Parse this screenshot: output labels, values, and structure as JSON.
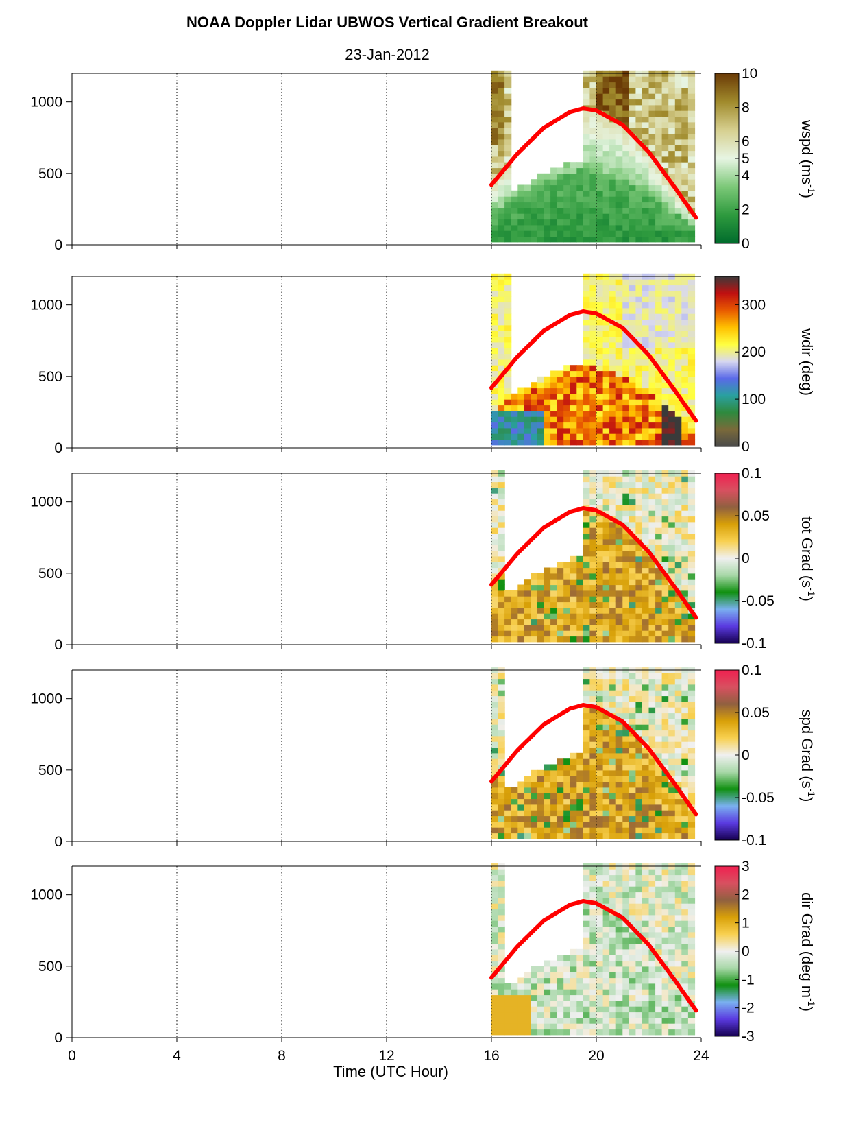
{
  "title": "NOAA Doppler Lidar  UBWOS  Vertical Gradient Breakout",
  "subtitle": "23-Jan-2012",
  "chart_data": {
    "type": "heatmap",
    "x_axis": {
      "label": "Time (UTC Hour)",
      "range": [
        0,
        24
      ],
      "ticks": [
        0,
        4,
        8,
        12,
        16,
        20,
        24
      ],
      "tick_labels": [
        "0",
        "4",
        "8",
        "12",
        "16",
        "20",
        "24"
      ],
      "dotted_gridlines_at": [
        4,
        8,
        12,
        16,
        20
      ]
    },
    "y_axis": {
      "range": [
        0,
        1200
      ],
      "ticks": [
        0,
        500,
        1000
      ],
      "tick_labels": [
        "0",
        "500",
        "1000"
      ]
    },
    "data_time_range": [
      16,
      24
    ],
    "overlay_curve": {
      "color": "#ff0000",
      "x": [
        16.0,
        17.0,
        18.0,
        19.0,
        19.5,
        20.0,
        21.0,
        22.0,
        23.0,
        23.8
      ],
      "y": [
        420,
        640,
        820,
        930,
        955,
        940,
        840,
        650,
        400,
        190
      ]
    },
    "panels": [
      {
        "colorbar_label": "wspd (ms",
        "colorbar_label_sup": "-1",
        "colorbar_label_end": ")",
        "colorbar_range": [
          0,
          10
        ],
        "colorbar_ticks": [
          0,
          2,
          4,
          5,
          6,
          8,
          10
        ],
        "colorbar_tick_labels": [
          "0",
          "2",
          "4",
          "5",
          "6",
          "8",
          "10"
        ],
        "colormap": [
          "#006b2c",
          "#2e9a3e",
          "#7cc878",
          "#e7f5e3",
          "#d6cf8f",
          "#a08a2c",
          "#6a3a06"
        ]
      },
      {
        "colorbar_label": "wdir (deg)",
        "colorbar_label_sup": "",
        "colorbar_label_end": "",
        "colorbar_range": [
          0,
          360
        ],
        "colorbar_ticks": [
          0,
          100,
          200,
          300
        ],
        "colorbar_tick_labels": [
          "0",
          "100",
          "200",
          "300"
        ],
        "colormap": [
          "#4a4a4a",
          "#7a6a3a",
          "#2e8a3e",
          "#2aa0a0",
          "#5a6ae8",
          "#d8d8f0",
          "#ffff40",
          "#ffc000",
          "#e85a00",
          "#c01010",
          "#3a3a3a"
        ]
      },
      {
        "colorbar_label": "tot Grad (s",
        "colorbar_label_sup": "-1",
        "colorbar_label_end": ")",
        "colorbar_range": [
          -0.1,
          0.1
        ],
        "colorbar_ticks": [
          -0.1,
          -0.05,
          0,
          0.05,
          0.1
        ],
        "colorbar_tick_labels": [
          "-0.1",
          "-0.05",
          "0",
          "0.05",
          "0.1"
        ],
        "colormap": [
          "#160050",
          "#5a3ae0",
          "#7ab0f0",
          "#109010",
          "#a8d8a8",
          "#f0f0f0",
          "#f8d050",
          "#d8a008",
          "#906040",
          "#d85060",
          "#f02050"
        ]
      },
      {
        "colorbar_label": "spd Grad (s",
        "colorbar_label_sup": "-1",
        "colorbar_label_end": ")",
        "colorbar_range": [
          -0.1,
          0.1
        ],
        "colorbar_ticks": [
          -0.1,
          -0.05,
          0,
          0.05,
          0.1
        ],
        "colorbar_tick_labels": [
          "-0.1",
          "-0.05",
          "0",
          "0.05",
          "0.1"
        ],
        "colormap": [
          "#160050",
          "#5a3ae0",
          "#7ab0f0",
          "#109010",
          "#a8d8a8",
          "#f0f0f0",
          "#f8d050",
          "#d8a008",
          "#906040",
          "#d85060",
          "#f02050"
        ]
      },
      {
        "colorbar_label": "dir Grad (deg m",
        "colorbar_label_sup": "-1",
        "colorbar_label_end": ")",
        "colorbar_range": [
          -3,
          3
        ],
        "colorbar_ticks": [
          -3,
          -2,
          -1,
          0,
          1,
          2,
          3
        ],
        "colorbar_tick_labels": [
          "-3",
          "-2",
          "-1",
          "0",
          "1",
          "2",
          "3"
        ],
        "colormap": [
          "#160050",
          "#5a3ae0",
          "#7ab0f0",
          "#109010",
          "#a8d8a8",
          "#f0f0f0",
          "#f8d050",
          "#d8a008",
          "#906040",
          "#d85060",
          "#f02050"
        ]
      }
    ]
  }
}
